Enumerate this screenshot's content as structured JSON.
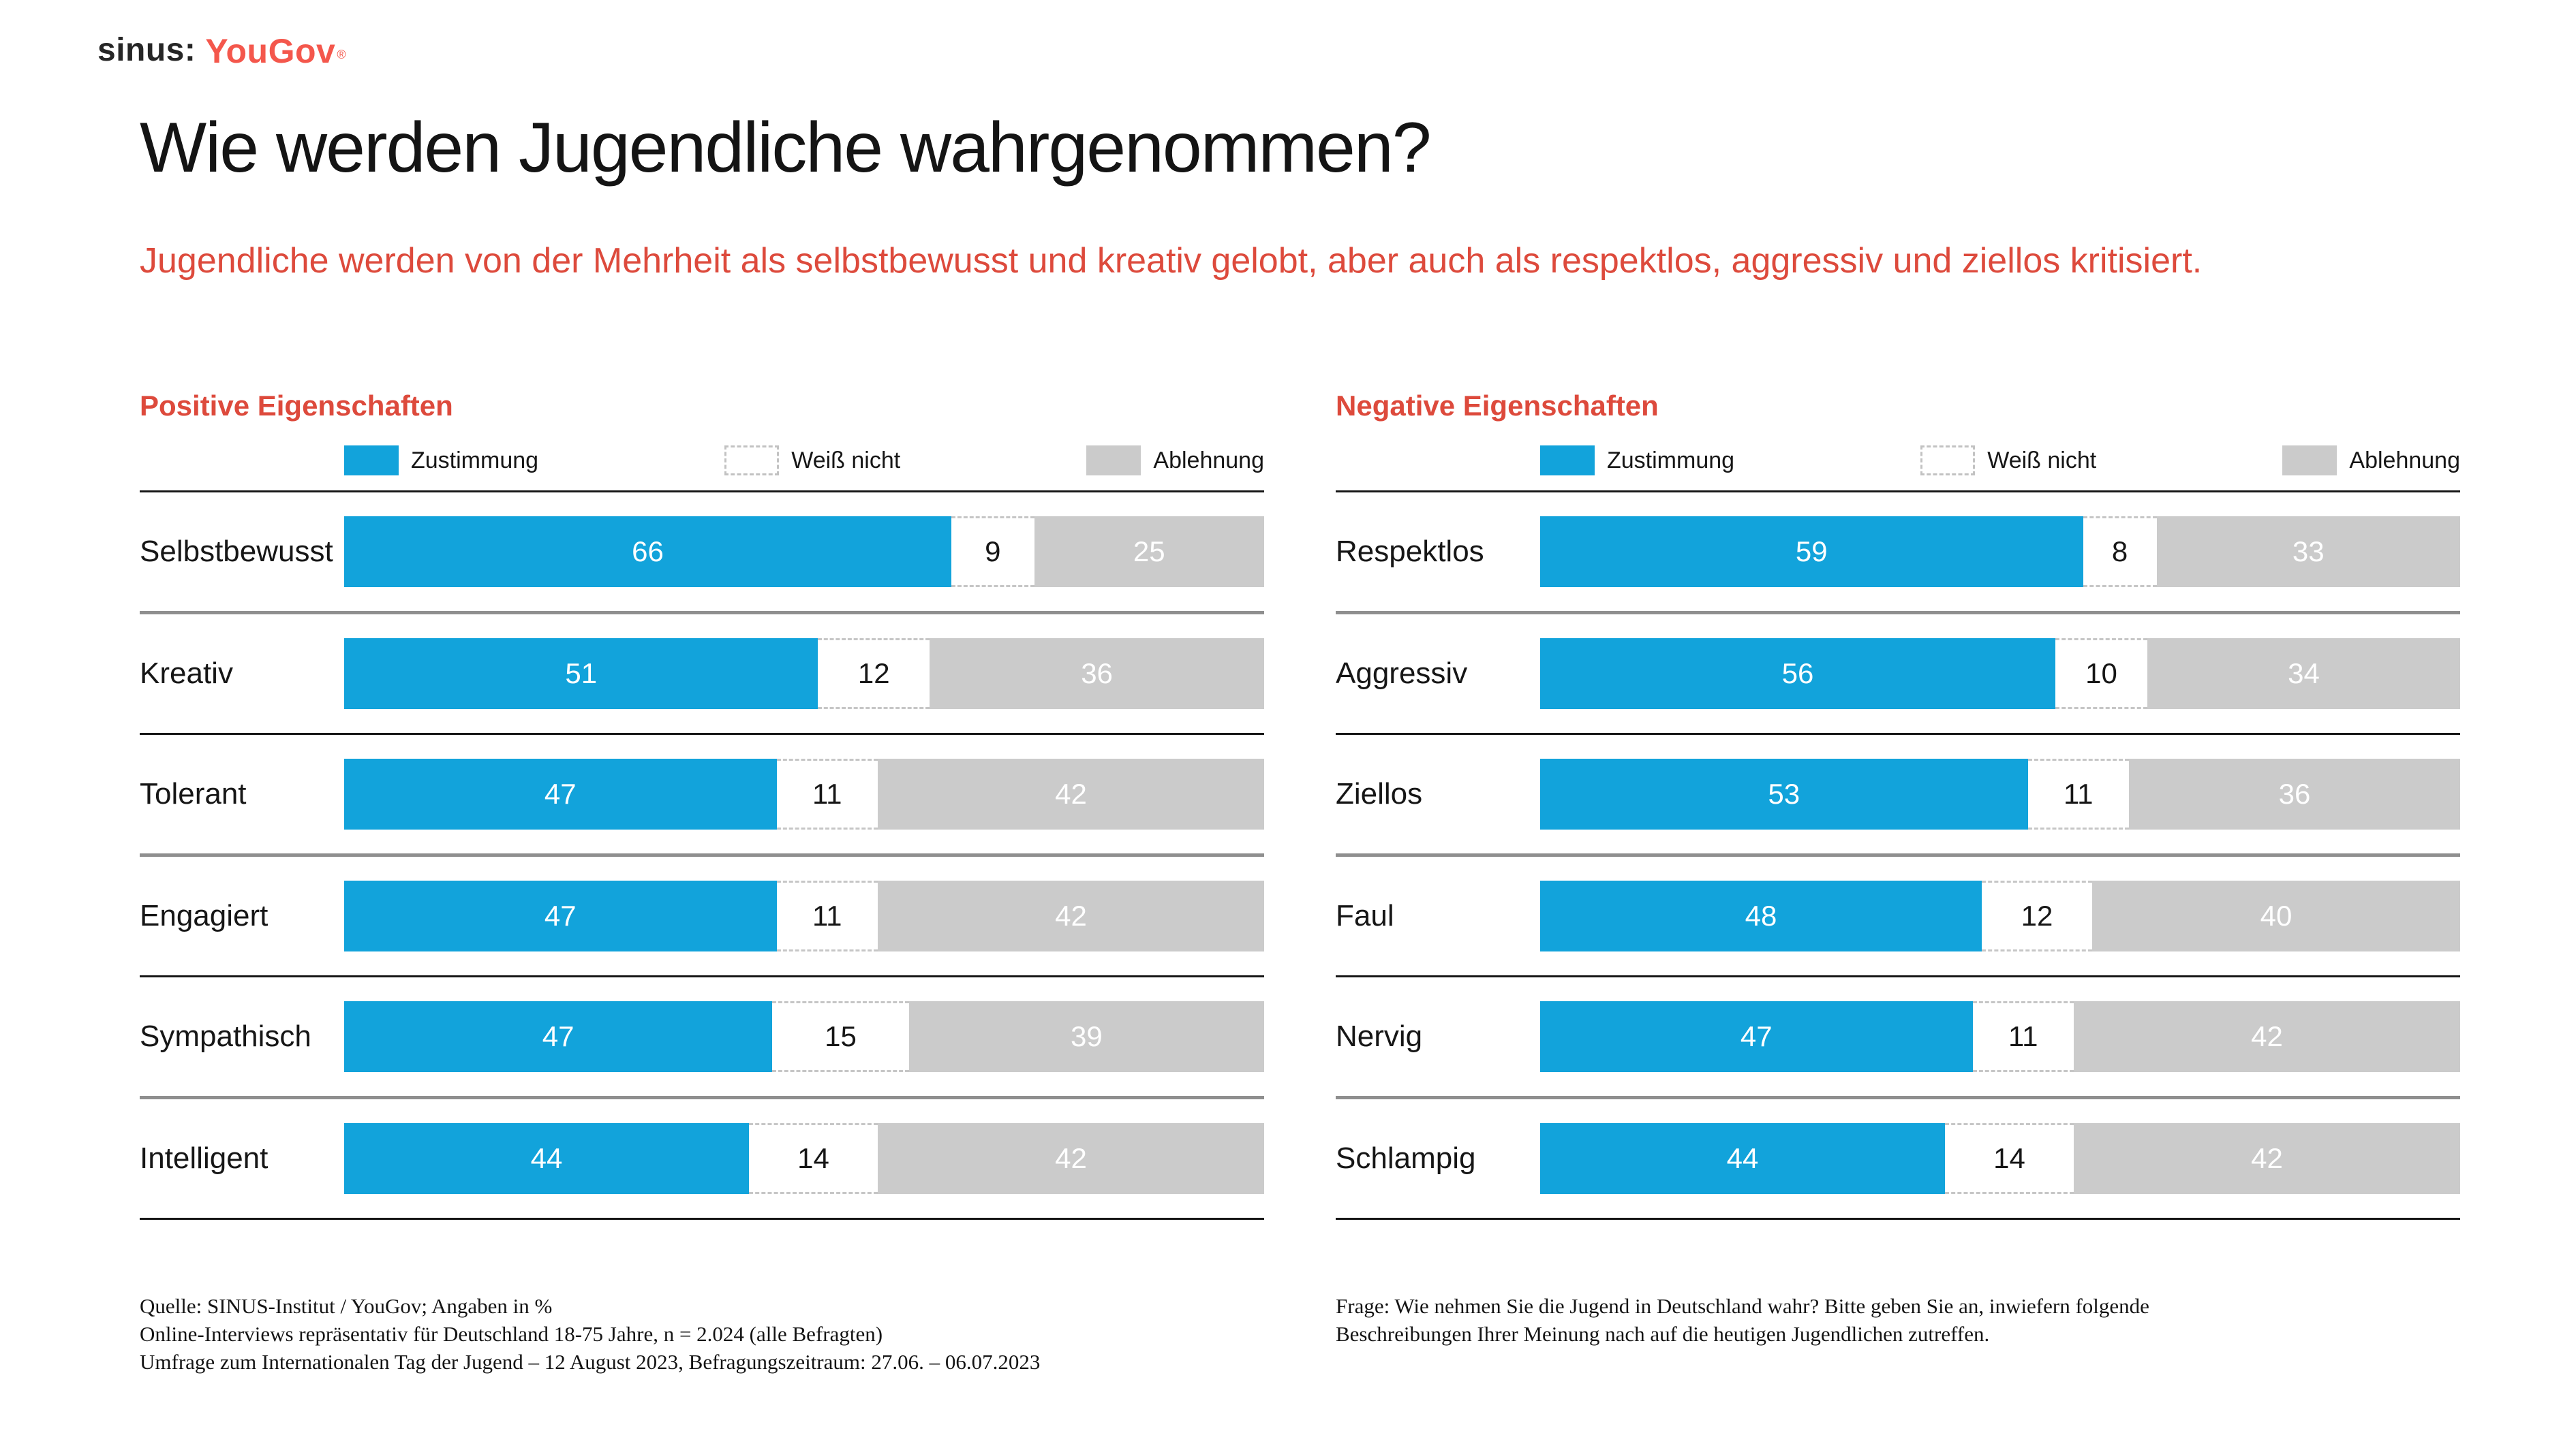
{
  "logo": {
    "sinus": "sinus:",
    "yougov": "YouGov",
    "registered": "®"
  },
  "title": "Wie werden Jugendliche wahrgenommen?",
  "subtitle": "Jugendliche werden von der Mehrheit als selbstbewusst und kreativ gelobt, aber auch als respektlos, aggressiv und ziellos kritisiert.",
  "legend": {
    "zustimmung": "Zustimmung",
    "weiss_nicht": "Weiß nicht",
    "ablehnung": "Ablehnung"
  },
  "colors": {
    "bar_blue": "#12a3db",
    "bar_gray": "#cbcbcb",
    "accent_red": "#dd4a3c",
    "logo_red": "#f4574c"
  },
  "chart_data": [
    {
      "type": "bar",
      "stacked": true,
      "orientation": "horizontal",
      "title": "Positive Eigenschaften",
      "unit": "%",
      "xlim": [
        0,
        100
      ],
      "legend_position": "top",
      "categories": [
        "Selbstbewusst",
        "Kreativ",
        "Tolerant",
        "Engagiert",
        "Sympathisch",
        "Intelligent"
      ],
      "series": [
        {
          "name": "Zustimmung",
          "values": [
            66,
            51,
            47,
            47,
            47,
            44
          ]
        },
        {
          "name": "Weiß nicht",
          "values": [
            9,
            12,
            11,
            11,
            15,
            14
          ]
        },
        {
          "name": "Ablehnung",
          "values": [
            25,
            36,
            42,
            42,
            39,
            42
          ]
        }
      ]
    },
    {
      "type": "bar",
      "stacked": true,
      "orientation": "horizontal",
      "title": "Negative Eigenschaften",
      "unit": "%",
      "xlim": [
        0,
        100
      ],
      "legend_position": "top",
      "categories": [
        "Respektlos",
        "Aggressiv",
        "Ziellos",
        "Faul",
        "Nervig",
        "Schlampig"
      ],
      "series": [
        {
          "name": "Zustimmung",
          "values": [
            59,
            56,
            53,
            48,
            47,
            44
          ]
        },
        {
          "name": "Weiß nicht",
          "values": [
            8,
            10,
            11,
            12,
            11,
            14
          ]
        },
        {
          "name": "Ablehnung",
          "values": [
            33,
            34,
            36,
            40,
            42,
            42
          ]
        }
      ]
    }
  ],
  "footer": {
    "left_lines": [
      "Quelle: SINUS-Institut / YouGov; Angaben in %",
      "Online-Interviews repräsentativ für Deutschland 18-75 Jahre, n = 2.024 (alle Befragten)",
      "Umfrage zum Internationalen Tag der Jugend – 12 August 2023, Befragungszeitraum: 27.06. – 06.07.2023"
    ],
    "right": "Frage: Wie nehmen Sie die Jugend in Deutschland wahr? Bitte geben Sie an, inwiefern folgende Beschreibungen Ihrer Meinung nach auf die heutigen Jugendlichen zutreffen."
  }
}
